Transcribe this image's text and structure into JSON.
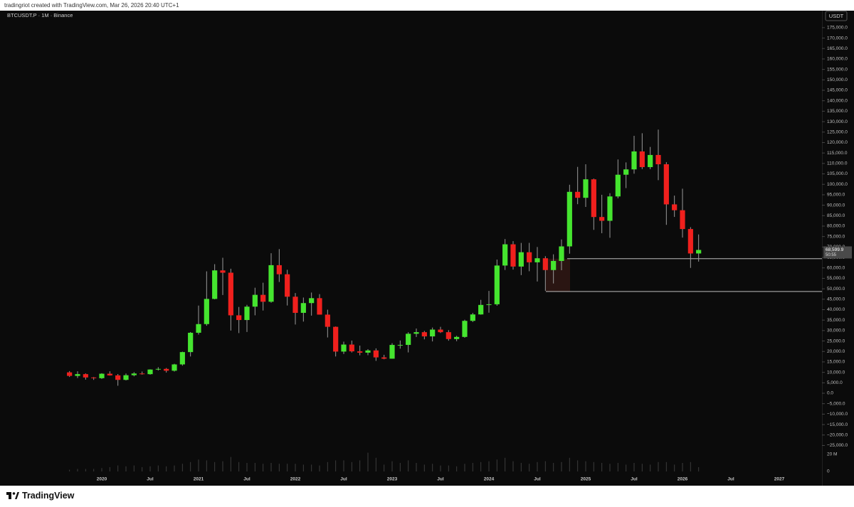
{
  "header": {
    "text": "tradingriot created with TradingView.com, Mar 26, 2026 20:40 UTC+1"
  },
  "chart_data": {
    "type": "candlestick",
    "symbol": "BTCUSDT.P · 1M · Binance",
    "currency": "USDT",
    "up_color": "#45e52f",
    "down_color": "#f0201d",
    "wick_color": "#9a9a9a",
    "volume_color": "#3c3c3c",
    "x": [
      "2019-09",
      "2019-10",
      "2019-11",
      "2019-12",
      "2020-01",
      "2020-02",
      "2020-03",
      "2020-04",
      "2020-05",
      "2020-06",
      "2020-07",
      "2020-08",
      "2020-09",
      "2020-10",
      "2020-11",
      "2020-12",
      "2021-01",
      "2021-02",
      "2021-03",
      "2021-04",
      "2021-05",
      "2021-06",
      "2021-07",
      "2021-08",
      "2021-09",
      "2021-10",
      "2021-11",
      "2021-12",
      "2022-01",
      "2022-02",
      "2022-03",
      "2022-04",
      "2022-05",
      "2022-06",
      "2022-07",
      "2022-08",
      "2022-09",
      "2022-10",
      "2022-11",
      "2022-12",
      "2023-01",
      "2023-02",
      "2023-03",
      "2023-04",
      "2023-05",
      "2023-06",
      "2023-07",
      "2023-08",
      "2023-09",
      "2023-10",
      "2023-11",
      "2023-12",
      "2024-01",
      "2024-02",
      "2024-03",
      "2024-04",
      "2024-05",
      "2024-06",
      "2024-07",
      "2024-08",
      "2024-09",
      "2024-10",
      "2024-11",
      "2024-12",
      "2025-01",
      "2025-02",
      "2025-03",
      "2025-04",
      "2025-05",
      "2025-06",
      "2025-07",
      "2025-08",
      "2025-09",
      "2025-10",
      "2025-11",
      "2025-12",
      "2026-01",
      "2026-02",
      "2026-03"
    ],
    "open": [
      10000,
      8300,
      9150,
      7550,
      7200,
      9350,
      8550,
      6400,
      8630,
      9450,
      9140,
      11350,
      11660,
      10780,
      13800,
      19700,
      28950,
      33100,
      45150,
      58800,
      57700,
      37300,
      35050,
      41450,
      47100,
      43800,
      61300,
      56950,
      46200,
      38480,
      43160,
      45510,
      37630,
      31800,
      19940,
      23300,
      20050,
      19420,
      20490,
      17160,
      16540,
      23130,
      23140,
      28470,
      29230,
      27210,
      30470,
      29230,
      25940,
      26960,
      34650,
      37720,
      42280,
      42580,
      61130,
      71290,
      60640,
      67490,
      62670,
      64620,
      58970,
      63330,
      70290,
      96400,
      93550,
      102400,
      84350,
      82550,
      94200,
      104600,
      107150,
      115750,
      108250,
      114050,
      109600,
      90400,
      87600,
      78600,
      66900
    ],
    "high": [
      10600,
      10500,
      9500,
      7750,
      9600,
      10500,
      9200,
      9450,
      10100,
      10400,
      11450,
      12480,
      12080,
      14100,
      19900,
      29300,
      41950,
      58350,
      61780,
      64850,
      59600,
      41300,
      42300,
      50500,
      52900,
      67000,
      69000,
      59100,
      47950,
      45800,
      48200,
      47450,
      40000,
      31950,
      24670,
      25200,
      22800,
      21100,
      21480,
      18400,
      23950,
      25250,
      29200,
      31000,
      29820,
      31450,
      31800,
      30200,
      27500,
      35200,
      38450,
      44700,
      48970,
      64000,
      73800,
      72800,
      71950,
      71970,
      70000,
      65600,
      66500,
      73600,
      99800,
      108350,
      109600,
      102750,
      95000,
      95750,
      111900,
      110500,
      123200,
      124450,
      117900,
      126200,
      110600,
      94600,
      97900,
      79500,
      76000
    ],
    "low": [
      7800,
      7300,
      6500,
      6400,
      6850,
      8450,
      3600,
      6150,
      8100,
      8900,
      8900,
      10900,
      9900,
      10400,
      13200,
      17600,
      28100,
      32300,
      44950,
      47000,
      30000,
      28800,
      29300,
      37300,
      39600,
      43300,
      53250,
      42000,
      32900,
      34300,
      37150,
      37700,
      26700,
      17600,
      18780,
      19500,
      18150,
      18200,
      15500,
      16260,
      16500,
      21350,
      19550,
      26950,
      25800,
      24800,
      28850,
      25150,
      24900,
      26550,
      34100,
      37600,
      38550,
      41880,
      59000,
      59200,
      56550,
      58400,
      53500,
      49000,
      52550,
      58900,
      66800,
      90500,
      89200,
      78200,
      76600,
      74400,
      93300,
      98200,
      105100,
      107300,
      107250,
      102000,
      80600,
      84400,
      74500,
      60000,
      63000
    ],
    "close": [
      8300,
      9150,
      7550,
      7200,
      9350,
      8550,
      6400,
      8630,
      9450,
      9140,
      11350,
      11660,
      10780,
      13800,
      19700,
      28950,
      33100,
      45150,
      58800,
      57700,
      37300,
      35050,
      41450,
      47100,
      43800,
      61300,
      56950,
      46200,
      38480,
      43160,
      45510,
      37630,
      31800,
      19940,
      23300,
      20050,
      19420,
      20490,
      17160,
      16540,
      23130,
      23140,
      28470,
      29230,
      27210,
      30470,
      29230,
      25940,
      26960,
      34650,
      37720,
      42280,
      42580,
      61130,
      71290,
      60640,
      67490,
      62670,
      64620,
      58970,
      63330,
      70290,
      96400,
      93550,
      102400,
      84350,
      82550,
      94200,
      104600,
      107150,
      115750,
      108250,
      114050,
      109600,
      90400,
      87600,
      78600,
      66900,
      68599.9
    ],
    "volume": [
      2000000,
      3000000,
      3000000,
      3000000,
      4000000,
      5000000,
      7000000,
      6000000,
      7000000,
      5000000,
      6000000,
      7000000,
      6000000,
      7000000,
      9000000,
      11000000,
      14000000,
      13000000,
      11000000,
      12000000,
      17000000,
      11000000,
      10000000,
      10000000,
      9000000,
      10000000,
      9000000,
      9000000,
      9000000,
      8000000,
      8000000,
      7000000,
      11000000,
      13000000,
      13000000,
      11000000,
      13000000,
      22000000,
      16000000,
      8000000,
      12000000,
      10000000,
      13000000,
      10000000,
      8000000,
      9000000,
      7000000,
      7000000,
      6000000,
      9000000,
      10000000,
      11000000,
      12000000,
      14000000,
      16000000,
      12000000,
      10000000,
      9000000,
      11000000,
      12000000,
      10000000,
      11000000,
      16000000,
      13000000,
      12000000,
      11000000,
      10000000,
      9000000,
      10000000,
      8000000,
      10000000,
      9000000,
      8000000,
      11000000,
      11000000,
      8000000,
      10000000,
      11000000,
      5000000
    ],
    "ylim": [
      -26200,
      182100
    ],
    "yticks": [
      {
        "value": -25000,
        "label": "−25,000.0"
      },
      {
        "value": -20000,
        "label": "−20,000.0"
      },
      {
        "value": -15000,
        "label": "−15,000.0"
      },
      {
        "value": -10000,
        "label": "−10,000.0"
      },
      {
        "value": -5000,
        "label": "−5,000.0"
      },
      {
        "value": 0,
        "label": "0.0"
      },
      {
        "value": 5000,
        "label": "5,000.0"
      },
      {
        "value": 10000,
        "label": "10,000.0"
      },
      {
        "value": 15000,
        "label": "15,000.0"
      },
      {
        "value": 20000,
        "label": "20,000.0"
      },
      {
        "value": 25000,
        "label": "25,000.0"
      },
      {
        "value": 30000,
        "label": "30,000.0"
      },
      {
        "value": 35000,
        "label": "35,000.0"
      },
      {
        "value": 40000,
        "label": "40,000.0"
      },
      {
        "value": 45000,
        "label": "45,000.0"
      },
      {
        "value": 50000,
        "label": "50,000.0"
      },
      {
        "value": 55000,
        "label": "55,000.0"
      },
      {
        "value": 60000,
        "label": "60,000.0"
      },
      {
        "value": 65000,
        "label": "65,000.0"
      },
      {
        "value": 70000,
        "label": "70,000.0"
      },
      {
        "value": 75000,
        "label": "75,000.0"
      },
      {
        "value": 80000,
        "label": "80,000.0"
      },
      {
        "value": 85000,
        "label": "85,000.0"
      },
      {
        "value": 90000,
        "label": "90,000.0"
      },
      {
        "value": 95000,
        "label": "95,000.0"
      },
      {
        "value": 100000,
        "label": "100,000.0"
      },
      {
        "value": 105000,
        "label": "105,000.0"
      },
      {
        "value": 110000,
        "label": "110,000.0"
      },
      {
        "value": 115000,
        "label": "115,000.0"
      },
      {
        "value": 120000,
        "label": "120,000.0"
      },
      {
        "value": 125000,
        "label": "125,000.0"
      },
      {
        "value": 130000,
        "label": "130,000.0"
      },
      {
        "value": 135000,
        "label": "135,000.0"
      },
      {
        "value": 140000,
        "label": "140,000.0"
      },
      {
        "value": 145000,
        "label": "145,000.0"
      },
      {
        "value": 150000,
        "label": "150,000.0"
      },
      {
        "value": 155000,
        "label": "155,000.0"
      },
      {
        "value": 160000,
        "label": "160,000.0"
      },
      {
        "value": 165000,
        "label": "165,000.0"
      },
      {
        "value": 170000,
        "label": "170,000.0"
      },
      {
        "value": 175000,
        "label": "175,000.0"
      }
    ],
    "volume_ylim": [
      0,
      25000000
    ],
    "volume_ticks": [
      {
        "value": 20000000,
        "label": "20 M"
      },
      0
    ],
    "xticks": [
      {
        "value": "2020-01",
        "label": "2020"
      },
      {
        "value": "2020-07",
        "label": "Jul"
      },
      {
        "value": "2021-01",
        "label": "2021"
      },
      {
        "value": "2021-07",
        "label": "Jul"
      },
      {
        "value": "2022-01",
        "label": "2022"
      },
      {
        "value": "2022-07",
        "label": "Jul"
      },
      {
        "value": "2023-01",
        "label": "2023"
      },
      {
        "value": "2023-07",
        "label": "Jul"
      },
      {
        "value": "2024-01",
        "label": "2024"
      },
      {
        "value": "2024-07",
        "label": "Jul"
      },
      {
        "value": "2025-01",
        "label": "2025"
      },
      {
        "value": "2025-07",
        "label": "Jul"
      },
      {
        "value": "2026-01",
        "label": "2026"
      },
      {
        "value": "2026-07",
        "label": "Jul"
      },
      {
        "value": "2027-01",
        "label": "2027"
      }
    ],
    "zone": {
      "high": 64400,
      "low": 48700,
      "color": "#2a1512",
      "line_color": "#d8d8d8"
    },
    "last_price": {
      "value": 68599.9,
      "label": "68,599.9",
      "countdown": "50:55"
    }
  },
  "footer": {
    "brand": "TradingView"
  }
}
